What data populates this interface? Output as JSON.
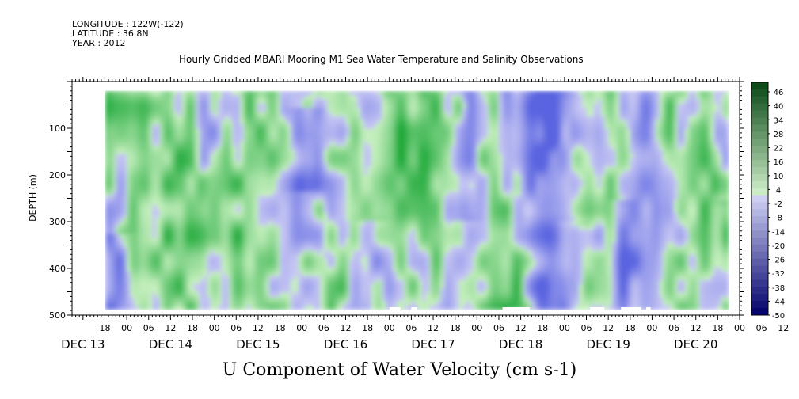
{
  "header": {
    "line1": "LONGITUDE : 122W(-122)",
    "line2": "LATITUDE : 36.8N",
    "line3": "YEAR : 2012",
    "title": "Hourly Gridded MBARI Mooring M1 Sea Water Temperature and Salinity Observations"
  },
  "bottom_title": "U Component of Water Velocity (cm s-1)",
  "chart_data": {
    "type": "heatmap",
    "title": "Hourly Gridded MBARI Mooring M1 Sea Water Temperature and Salinity Observations",
    "xlabel": "",
    "ylabel": "DEPTH (m)",
    "y_axis": {
      "range": [
        0,
        500
      ],
      "inverted": true,
      "ticks": [
        100,
        200,
        300,
        400,
        500
      ]
    },
    "x_axis": {
      "unit": "hour since DEC 13 00",
      "range": [
        9,
        192
      ],
      "hour_tick_labels": [
        "18",
        "00",
        "06",
        "12",
        "18",
        "00",
        "06",
        "12",
        "18",
        "00",
        "06",
        "12",
        "18",
        "00",
        "06",
        "12",
        "18",
        "00",
        "06",
        "12",
        "18",
        "00",
        "06",
        "12",
        "18",
        "00",
        "06",
        "12",
        "18",
        "00",
        "06",
        "12"
      ],
      "day_labels": [
        "DEC 13",
        "DEC 14",
        "DEC 15",
        "DEC 16",
        "DEC 17",
        "DEC 18",
        "DEC 19",
        "DEC 20"
      ]
    },
    "colorbar": {
      "labels": [
        "46",
        "40",
        "34",
        "28",
        "22",
        "16",
        "10",
        "4",
        "-2",
        "-8",
        "-14",
        "-20",
        "-26",
        "-32",
        "-38",
        "-44",
        "-50"
      ],
      "range": [
        -50,
        49
      ]
    },
    "data_extent": {
      "time_start_hour": 18,
      "time_end_hour": 189,
      "depth_min": 20,
      "depth_max": 485
    },
    "features": [
      {
        "label": "positive (green)",
        "description": "broad columns of eastward flow"
      },
      {
        "label": "negative (blue)",
        "description": "columns of westward flow, strongest near DEC 17 18 and DEC 18"
      }
    ],
    "colors": {
      "positive_low": "#c8f0c0",
      "positive_high": "#1ca838",
      "negative_low": "#c8c8f4",
      "negative_high": "#5a64e0",
      "missing": "#ffffff"
    }
  }
}
